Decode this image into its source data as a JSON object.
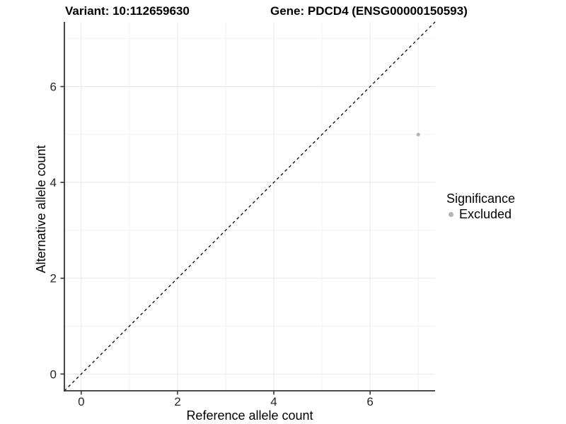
{
  "header": {
    "variant_title": "Variant: 10:112659630",
    "gene_title": "Gene: PDCD4 (ENSG00000150593)"
  },
  "legend": {
    "title": "Significance",
    "items": [
      {
        "label": "Excluded",
        "color": "#b4b4b4"
      }
    ]
  },
  "chart_data": {
    "type": "scatter",
    "title": "Variant: 10:112659630 | Gene: PDCD4 (ENSG00000150593)",
    "xlabel": "Reference allele count",
    "ylabel": "Alternative allele count",
    "xlim": [
      -0.35,
      7.35
    ],
    "ylim": [
      -0.35,
      7.35
    ],
    "x_ticks": [
      0,
      2,
      4,
      6
    ],
    "y_ticks": [
      0,
      2,
      4,
      6
    ],
    "x_minor_ticks": [
      1,
      3,
      5,
      7
    ],
    "y_minor_ticks": [
      1,
      3,
      5,
      7
    ],
    "grid": true,
    "legend_position": "right",
    "series": [
      {
        "name": "Excluded",
        "color": "#b4b4b4",
        "points": [
          {
            "x": 7,
            "y": 5
          }
        ]
      }
    ],
    "reference_line": {
      "type": "identity",
      "linestyle": "dashed",
      "color": "#000000"
    }
  },
  "colors": {
    "background": "#ffffff",
    "grid_major": "#e8e8e8",
    "grid_minor": "#f2f2f2",
    "axis_line": "#333333",
    "tick_text": "#262626",
    "point": "#b4b4b4"
  }
}
